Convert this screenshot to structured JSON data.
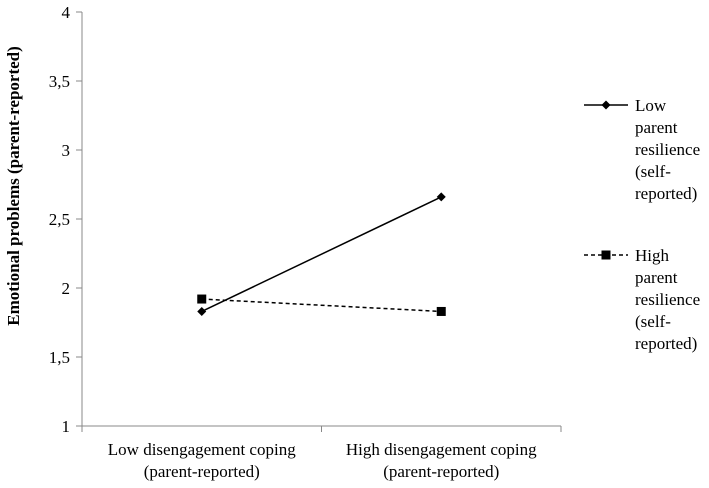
{
  "chart_data": {
    "type": "line",
    "title": "",
    "xlabel": "",
    "ylabel": "Emotional problems (parent-reported)",
    "ylim": [
      1,
      4
    ],
    "yticks": [
      "1",
      "1,5",
      "2",
      "2,5",
      "3",
      "3,5",
      "4"
    ],
    "categories": [
      [
        "Low disengagement coping",
        "(parent-reported)"
      ],
      [
        "High disengagement coping",
        "(parent-reported)"
      ]
    ],
    "series": [
      {
        "name": [
          "Low",
          "parent",
          "resilience",
          "(self-",
          "reported)"
        ],
        "values": [
          1.83,
          2.66
        ],
        "line": "solid",
        "marker": "diamond",
        "color": "#000000"
      },
      {
        "name": [
          "High",
          "parent",
          "resilience",
          "(self-",
          "reported)"
        ],
        "values": [
          1.92,
          1.83
        ],
        "line": "dashed",
        "marker": "square",
        "color": "#000000"
      }
    ],
    "grid": false,
    "legend": "right"
  }
}
